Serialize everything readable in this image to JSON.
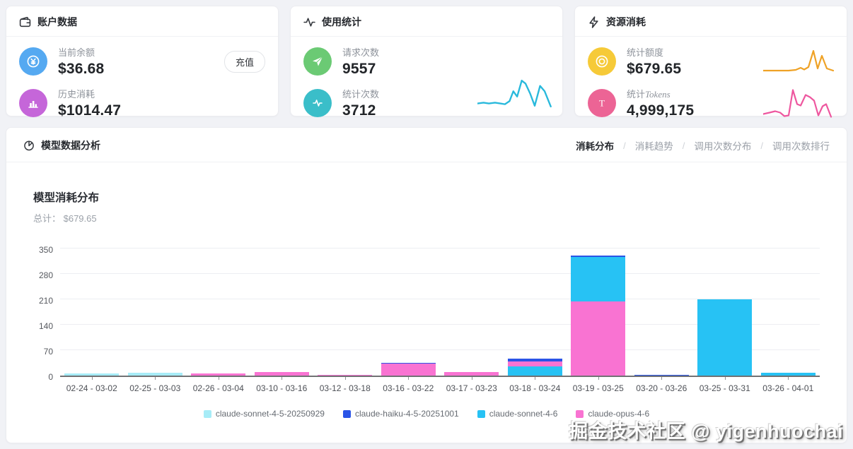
{
  "cards": {
    "account": {
      "title": "账户数据",
      "recharge_label": "充值",
      "rows": [
        {
          "label": "当前余额",
          "value": "$36.68",
          "icon_color": "#55a9f1"
        },
        {
          "label": "历史消耗",
          "value": "$1014.47",
          "icon_color": "#c566d9"
        }
      ]
    },
    "usage": {
      "title": "使用统计",
      "sparkline_color": "#29b9dc",
      "rows": [
        {
          "label": "请求次数",
          "value": "9557",
          "icon_color": "#6bca74"
        },
        {
          "label": "统计次数",
          "value": "3712",
          "icon_color": "#3abec9"
        }
      ]
    },
    "resource": {
      "title": "资源消耗",
      "rows": [
        {
          "label": "统计额度",
          "value": "$679.65",
          "icon_color": "#f6ca38",
          "sparkline_color": "#efa226"
        },
        {
          "label_prefix": "统计",
          "label_en": "Tokens",
          "value": "4,999,175",
          "icon_color": "#ec6495",
          "sparkline_color": "#ee579f"
        }
      ]
    }
  },
  "panel": {
    "title": "模型数据分析",
    "tab_separator": "/",
    "tabs": [
      {
        "label": "消耗分布",
        "active": true
      },
      {
        "label": "消耗趋势",
        "active": false
      },
      {
        "label": "调用次数分布",
        "active": false
      },
      {
        "label": "调用次数排行",
        "active": false
      }
    ]
  },
  "chart_data": {
    "type": "bar",
    "stacked": true,
    "title": "模型消耗分布",
    "subtitle": "总计： $679.65",
    "ylim": [
      0,
      350
    ],
    "yticks": [
      0,
      70,
      140,
      210,
      280,
      350
    ],
    "grid": true,
    "legend_position": "bottom",
    "stack_order": "largest-at-bottom",
    "categories": [
      "02-24 - 03-02",
      "02-25 - 03-03",
      "02-26 - 03-04",
      "03-10 - 03-16",
      "03-12 - 03-18",
      "03-16 - 03-22",
      "03-17 - 03-23",
      "03-18 - 03-24",
      "03-19 - 03-25",
      "03-20 - 03-26",
      "03-25 - 03-31",
      "03-26 - 04-01"
    ],
    "series": [
      {
        "name": "claude-sonnet-4-5-20250929",
        "color": "#a7ecf7",
        "values": [
          5,
          7,
          0,
          0,
          0,
          0,
          0,
          0,
          0,
          0,
          0,
          0
        ]
      },
      {
        "name": "claude-haiku-4-5-20251001",
        "color": "#2a54e7",
        "values": [
          0,
          0,
          0,
          0,
          0,
          2,
          0,
          7,
          4,
          1,
          0,
          0
        ]
      },
      {
        "name": "claude-sonnet-4-6",
        "color": "#27c2f4",
        "values": [
          0,
          0,
          0,
          0,
          0,
          0,
          0,
          26,
          122,
          0,
          210,
          8
        ]
      },
      {
        "name": "claude-opus-4-6",
        "color": "#f973d2",
        "values": [
          0,
          0,
          5,
          9,
          2,
          33,
          10,
          13,
          205,
          0,
          0,
          0
        ]
      }
    ]
  },
  "watermark": "掘金技术社区 @ yigenhuochai"
}
